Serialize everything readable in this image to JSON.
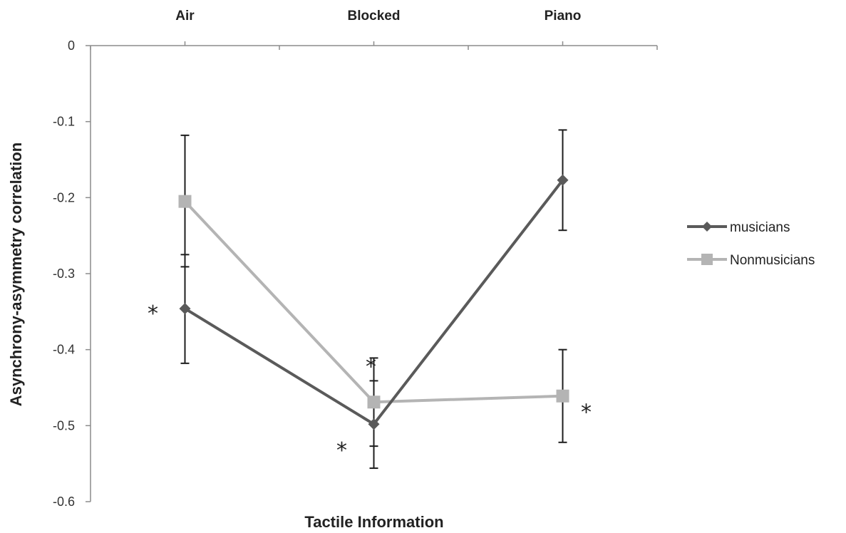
{
  "chart_data": {
    "type": "line",
    "categories": [
      "Air",
      "Blocked",
      "Piano"
    ],
    "xlabel": "Tactile Information",
    "ylabel": "Asynchrony-asymmetry correlation",
    "ylim": [
      -0.6,
      0
    ],
    "yticks": [
      "0",
      "-0.1",
      "-0.2",
      "-0.3",
      "-0.4",
      "-0.5",
      "-0.6"
    ],
    "ytick_values": [
      0,
      -0.1,
      -0.2,
      -0.3,
      -0.4,
      -0.5,
      -0.6
    ],
    "grid": false,
    "legend_position": "right",
    "series": [
      {
        "name": "musicians",
        "marker": "diamond",
        "color": "#5a5a5a",
        "values": [
          -0.346,
          -0.498,
          -0.177
        ],
        "err_low": [
          -0.418,
          -0.556,
          -0.243
        ],
        "err_high": [
          -0.275,
          -0.441,
          -0.111
        ]
      },
      {
        "name": "Nonmusicians",
        "marker": "square",
        "color": "#b4b4b4",
        "values": [
          -0.205,
          -0.469,
          -0.461
        ],
        "err_low": [
          -0.291,
          -0.527,
          -0.522
        ],
        "err_high": [
          -0.118,
          -0.411,
          -0.4
        ]
      }
    ],
    "annotations": [
      {
        "text": "*",
        "category": 0,
        "y": -0.345,
        "side": "left"
      },
      {
        "text": "*",
        "category": 1,
        "y": -0.415,
        "side": "center"
      },
      {
        "text": "*",
        "category": 1,
        "y": -0.525,
        "side": "left"
      },
      {
        "text": "*",
        "category": 2,
        "y": -0.475,
        "side": "right"
      }
    ]
  }
}
